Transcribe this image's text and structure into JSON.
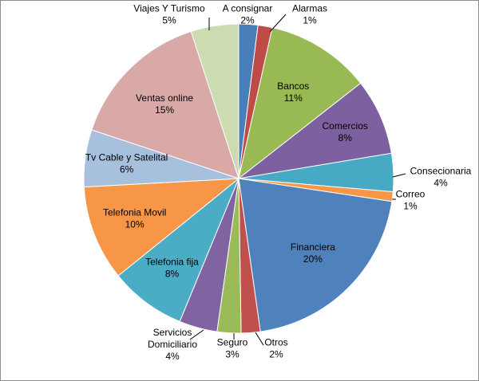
{
  "chart_data": {
    "type": "pie",
    "title": "",
    "slices": [
      {
        "label": "A consignar",
        "value": 2,
        "display": "2%",
        "color": "#4a7ebb"
      },
      {
        "label": "Alarmas",
        "value": 1.5,
        "display": "1%",
        "color": "#be4b48"
      },
      {
        "label": "Bancos",
        "value": 11,
        "display": "11%",
        "color": "#98b954"
      },
      {
        "label": "Comercios",
        "value": 8,
        "display": "8%",
        "color": "#7d60a0"
      },
      {
        "label": "Consecionaria",
        "value": 4,
        "display": "4%",
        "color": "#46aac4"
      },
      {
        "label": "Correo",
        "value": 1,
        "display": "1%",
        "color": "#f79646"
      },
      {
        "label": "Financiera",
        "value": 20.5,
        "display": "20%",
        "color": "#4f81bd"
      },
      {
        "label": "Otros",
        "value": 2,
        "display": "2%",
        "color": "#c0504d"
      },
      {
        "label": "Seguro",
        "value": 2.5,
        "display": "3%",
        "color": "#9bbb59"
      },
      {
        "label": "Servicios Domiciliario",
        "value": 4,
        "display": "4%",
        "color": "#8064a2"
      },
      {
        "label": "Telefonia fija",
        "value": 8,
        "display": "8%",
        "color": "#4bacc6"
      },
      {
        "label": "Telefonia Movil",
        "value": 10,
        "display": "10%",
        "color": "#f79646"
      },
      {
        "label": "Tv Cable y Satelital",
        "value": 6,
        "display": "6%",
        "color": "#a7c0de"
      },
      {
        "label": "Ventas online",
        "value": 15,
        "display": "15%",
        "color": "#d9a9a8"
      },
      {
        "label": "Viajes Y Turismo",
        "value": 5,
        "display": "5%",
        "color": "#cddcb0"
      }
    ]
  }
}
